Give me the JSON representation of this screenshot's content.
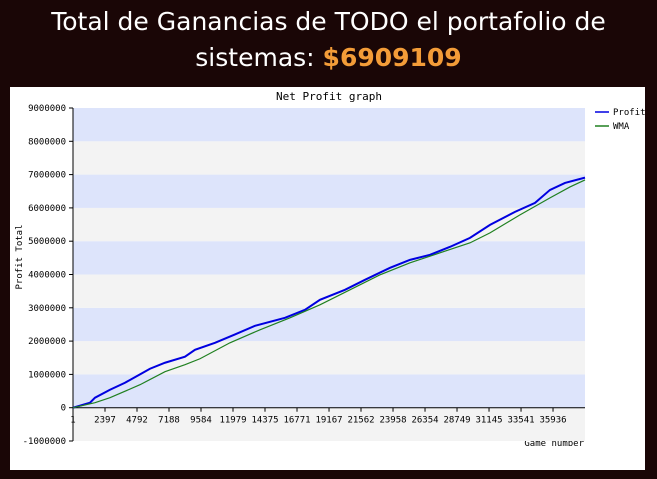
{
  "header": {
    "title_line1": "Total de Ganancias de TODO el portafolio de",
    "title_line2": "sistemas:",
    "total": "$6909109"
  },
  "chart_data": {
    "type": "line",
    "title": "Net Profit graph",
    "y_label": "Profit Total",
    "x_label": "Game number",
    "xlim": [
      1,
      38330
    ],
    "ylim": [
      -1000000,
      9000000
    ],
    "xticks": [
      1,
      2397,
      4792,
      7188,
      9584,
      11979,
      14375,
      16771,
      19167,
      21562,
      23958,
      26354,
      28749,
      31145,
      33541,
      35936
    ],
    "yticks": [
      -1000000,
      0,
      1000000,
      2000000,
      3000000,
      4000000,
      5000000,
      6000000,
      7000000,
      8000000,
      9000000
    ],
    "grid_bands": [
      "#dde4fb",
      "#f3f3f3"
    ],
    "legend": "top-right",
    "series": [
      {
        "name": "Profit",
        "color": "#0000e0",
        "x": [
          1,
          1273,
          1647,
          2770,
          3893,
          5016,
          5764,
          6887,
          8384,
          9133,
          10630,
          12127,
          13625,
          15870,
          17367,
          18490,
          20362,
          21859,
          23731,
          25228,
          26725,
          28223,
          29720,
          31217,
          33089,
          34586,
          35709,
          36832,
          38330
        ],
        "values": [
          0,
          150000,
          300000,
          540000,
          750000,
          1000000,
          1170000,
          1350000,
          1530000,
          1740000,
          1950000,
          2200000,
          2460000,
          2700000,
          2940000,
          3240000,
          3540000,
          3840000,
          4200000,
          4440000,
          4590000,
          4830000,
          5100000,
          5490000,
          5880000,
          6150000,
          6540000,
          6750000,
          6909109
        ]
      },
      {
        "name": "WMA",
        "color": "#208020",
        "x": [
          1,
          1647,
          2770,
          5016,
          6887,
          8384,
          9507,
          11753,
          13999,
          16245,
          18490,
          20736,
          22982,
          25228,
          27474,
          29720,
          31217,
          33463,
          35709,
          37206,
          38330
        ],
        "values": [
          0,
          150000,
          300000,
          690000,
          1080000,
          1290000,
          1470000,
          1950000,
          2340000,
          2700000,
          3090000,
          3540000,
          3990000,
          4350000,
          4650000,
          4950000,
          5250000,
          5790000,
          6300000,
          6630000,
          6840000
        ]
      }
    ]
  }
}
